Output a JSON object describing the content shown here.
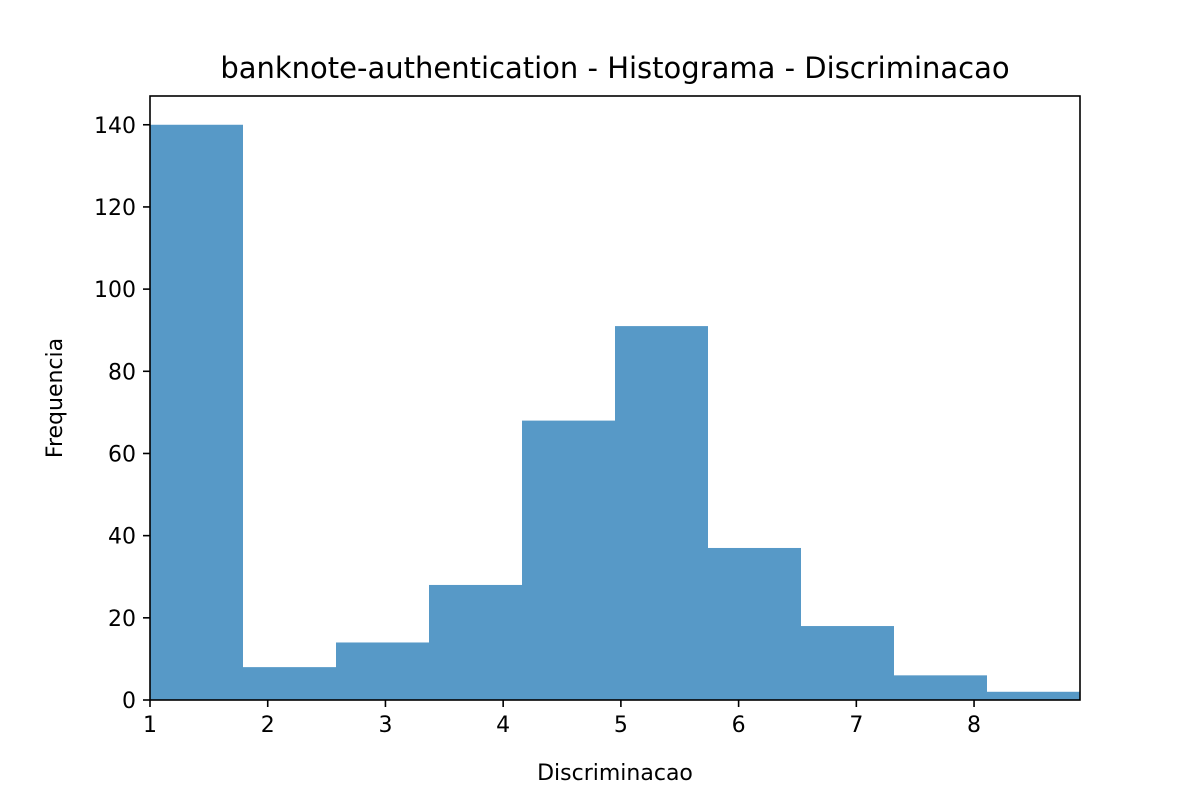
{
  "chart_data": {
    "type": "bar",
    "title": "banknote-authentication - Histograma - Discriminacao",
    "xlabel": "Discriminacao",
    "ylabel": "Frequencia",
    "bin_edges": [
      1.0,
      1.79,
      2.58,
      3.37,
      4.16,
      4.95,
      5.74,
      6.53,
      7.32,
      8.11,
      8.9
    ],
    "values": [
      140,
      8,
      14,
      28,
      68,
      91,
      37,
      18,
      6,
      2
    ],
    "xlim": [
      1.0,
      8.9
    ],
    "ylim": [
      0,
      147
    ],
    "xticks": [
      1,
      2,
      3,
      4,
      5,
      6,
      7,
      8
    ],
    "yticks": [
      0,
      20,
      40,
      60,
      80,
      100,
      120,
      140
    ],
    "bar_color": "#5799c7",
    "grid": false,
    "legend": false
  }
}
